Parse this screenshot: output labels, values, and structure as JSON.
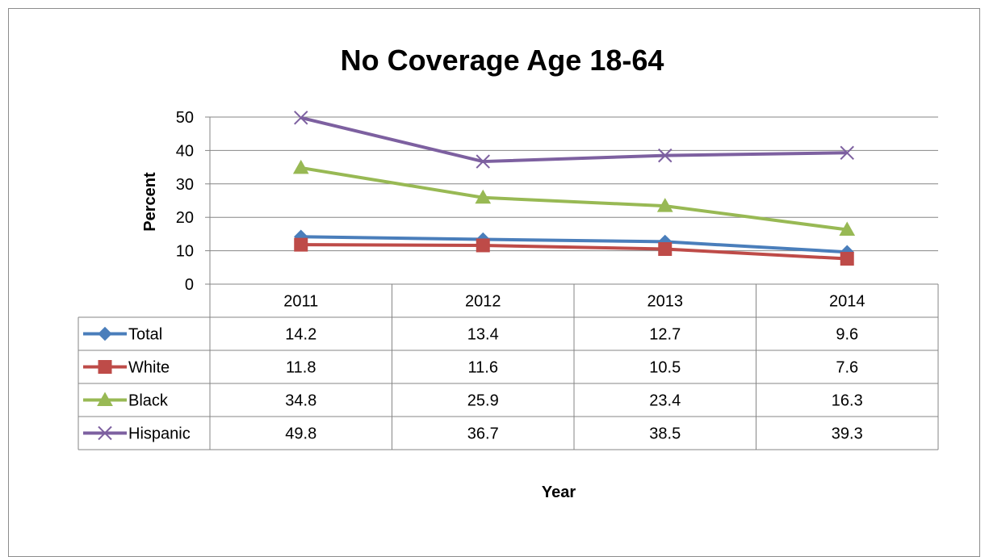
{
  "chart_data": {
    "type": "line",
    "title": "No Coverage Age 18-64",
    "xlabel": "Year",
    "ylabel": "Percent",
    "categories": [
      "2011",
      "2012",
      "2013",
      "2014"
    ],
    "ylim": [
      0,
      50
    ],
    "yticks": [
      0,
      10,
      20,
      30,
      40,
      50
    ],
    "grid": true,
    "legend": "data-table",
    "series": [
      {
        "name": "Total",
        "values": [
          14.2,
          13.4,
          12.7,
          9.6
        ],
        "color": "#4a7ebb",
        "marker": "diamond"
      },
      {
        "name": "White",
        "values": [
          11.8,
          11.6,
          10.5,
          7.6
        ],
        "color": "#be4b48",
        "marker": "square"
      },
      {
        "name": "Black",
        "values": [
          34.8,
          25.9,
          23.4,
          16.3
        ],
        "color": "#98b954",
        "marker": "triangle"
      },
      {
        "name": "Hispanic",
        "values": [
          49.8,
          36.7,
          38.5,
          39.3
        ],
        "color": "#7d60a0",
        "marker": "x"
      }
    ]
  }
}
